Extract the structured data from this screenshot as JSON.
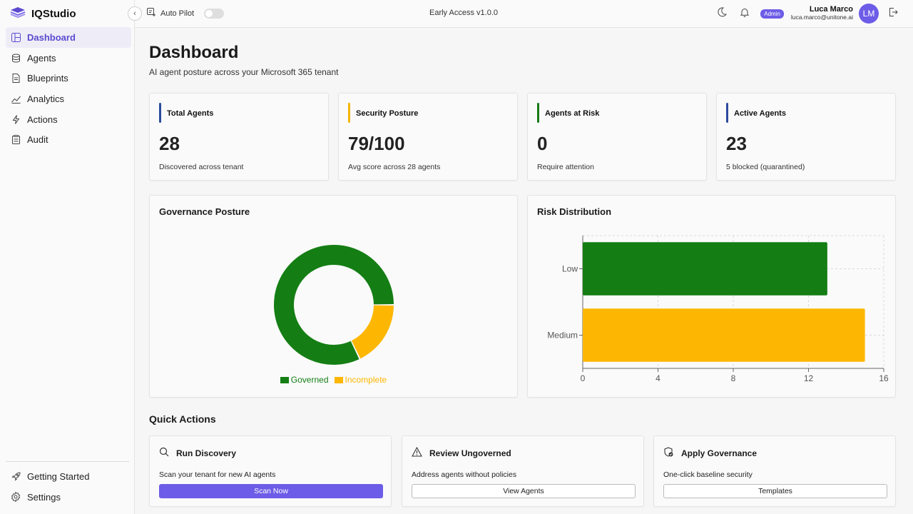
{
  "app": {
    "name": "IQStudio"
  },
  "sidebar": {
    "items": [
      {
        "label": "Dashboard",
        "icon": "dashboard-icon",
        "active": true
      },
      {
        "label": "Agents",
        "icon": "agents-icon"
      },
      {
        "label": "Blueprints",
        "icon": "document-icon"
      },
      {
        "label": "Analytics",
        "icon": "trend-icon"
      },
      {
        "label": "Actions",
        "icon": "lightning-icon"
      },
      {
        "label": "Audit",
        "icon": "clipboard-icon"
      }
    ],
    "bottom": [
      {
        "label": "Getting Started",
        "icon": "rocket-icon"
      },
      {
        "label": "Settings",
        "icon": "gear-icon"
      }
    ]
  },
  "topbar": {
    "autopilot_label": "Auto Pilot",
    "autopilot_on": false,
    "version": "Early Access v1.0.0",
    "role_badge": "Admin",
    "user_name": "Luca Marco",
    "user_email": "luca.marco@unitone.ai",
    "avatar_initials": "LM"
  },
  "page": {
    "title": "Dashboard",
    "subtitle": "AI agent posture across your Microsoft 365 tenant"
  },
  "stats": [
    {
      "label": "Total Agents",
      "value": "28",
      "sub": "Discovered across tenant",
      "accent": "#2b4b9b"
    },
    {
      "label": "Security Posture",
      "value": "79/100",
      "sub": "Avg score across 28 agents",
      "accent": "#f5b400"
    },
    {
      "label": "Agents at Risk",
      "value": "0",
      "sub": "Require attention",
      "accent": "#167a17"
    },
    {
      "label": "Active Agents",
      "value": "23",
      "sub": "5 blocked (quarantined)",
      "accent": "#2b4b9b"
    }
  ],
  "colors": {
    "governed": "#147e14",
    "incomplete": "#fdb703",
    "accent": "#6d5ce7"
  },
  "panels": {
    "governance_title": "Governance Posture",
    "risk_title": "Risk Distribution"
  },
  "chart_data": [
    {
      "type": "pie",
      "title": "Governance Posture",
      "labels": [
        "Governed",
        "Incomplete"
      ],
      "values": [
        23,
        5
      ],
      "colors": [
        "#147e14",
        "#fdb703"
      ],
      "legend": "bottom"
    },
    {
      "type": "bar",
      "orientation": "horizontal",
      "title": "Risk Distribution",
      "categories": [
        "Low",
        "Medium"
      ],
      "values": [
        13,
        15
      ],
      "colors": [
        "#147e14",
        "#fdb703"
      ],
      "xlim": [
        0,
        16
      ],
      "xticks": [
        0,
        4,
        8,
        12,
        16
      ],
      "grid": true
    }
  ],
  "quick_actions": {
    "title": "Quick Actions",
    "items": [
      {
        "title": "Run Discovery",
        "icon": "search-icon",
        "desc": "Scan your tenant for new AI agents",
        "button": "Scan Now",
        "primary": true
      },
      {
        "title": "Review Ungoverned",
        "icon": "warning-icon",
        "desc": "Address agents without policies",
        "button": "View Agents",
        "primary": false
      },
      {
        "title": "Apply Governance",
        "icon": "shield-check-icon",
        "desc": "One-click baseline security",
        "button": "Templates",
        "primary": false
      }
    ]
  }
}
